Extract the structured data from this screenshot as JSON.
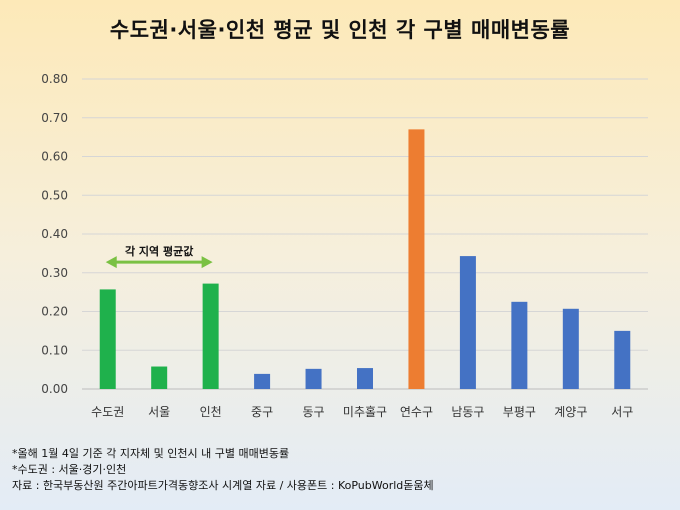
{
  "chart_data": {
    "type": "bar",
    "title": "수도권·서울·인천 평균 및 인천 각 구별 매매변동률",
    "categories": [
      "수도권",
      "서울",
      "인천",
      "중구",
      "동구",
      "미추홀구",
      "연수구",
      "남동구",
      "부평구",
      "계양구",
      "서구"
    ],
    "values": [
      0.257,
      0.058,
      0.272,
      0.039,
      0.052,
      0.054,
      0.67,
      0.343,
      0.225,
      0.207,
      0.15
    ],
    "bar_colors": [
      "#1fb14c",
      "#1fb14c",
      "#1fb14c",
      "#4472c4",
      "#4472c4",
      "#4472c4",
      "#ed7d31",
      "#4472c4",
      "#4472c4",
      "#4472c4",
      "#4472c4"
    ],
    "ylim": [
      0,
      0.8
    ],
    "yticks": [
      "0.00",
      "0.10",
      "0.20",
      "0.30",
      "0.40",
      "0.50",
      "0.60",
      "0.70",
      "0.80"
    ],
    "grid": true,
    "annotation": {
      "text": "각 지역 평균값",
      "from_category": 0,
      "to_category": 2,
      "level": 0.33,
      "color": "#7ac143"
    }
  },
  "notes": [
    "*올해 1월 4일 기준 각 지자체 및 인천시 내 구별 매매변동률",
    "*수도권 : 서울·경기·인천",
    "자료 : 한국부동산원 주간아파트가격동향조사 시계열 자료 / 사용폰트 : KoPubWorld돋움체"
  ]
}
